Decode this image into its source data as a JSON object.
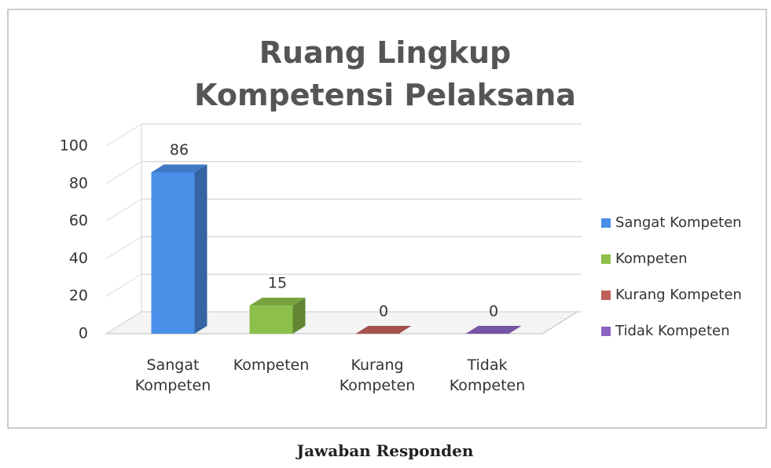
{
  "chart_data": {
    "type": "bar3d",
    "title": "Ruang Lingkup Kompetensi Pelaksana",
    "categories": [
      "Sangat Kompeten",
      "Kompeten",
      "Kurang Kompeten",
      "Tidak Kompeten"
    ],
    "values": [
      86,
      15,
      0,
      0
    ],
    "colors": [
      "#4a8fe8",
      "#8cc04a",
      "#c0605a",
      "#8a64c2"
    ],
    "ylim": [
      0,
      100
    ],
    "yticks": [
      0,
      20,
      40,
      60,
      80,
      100
    ],
    "grid": true,
    "legend": "right",
    "caption": "Jawaban Responden"
  }
}
